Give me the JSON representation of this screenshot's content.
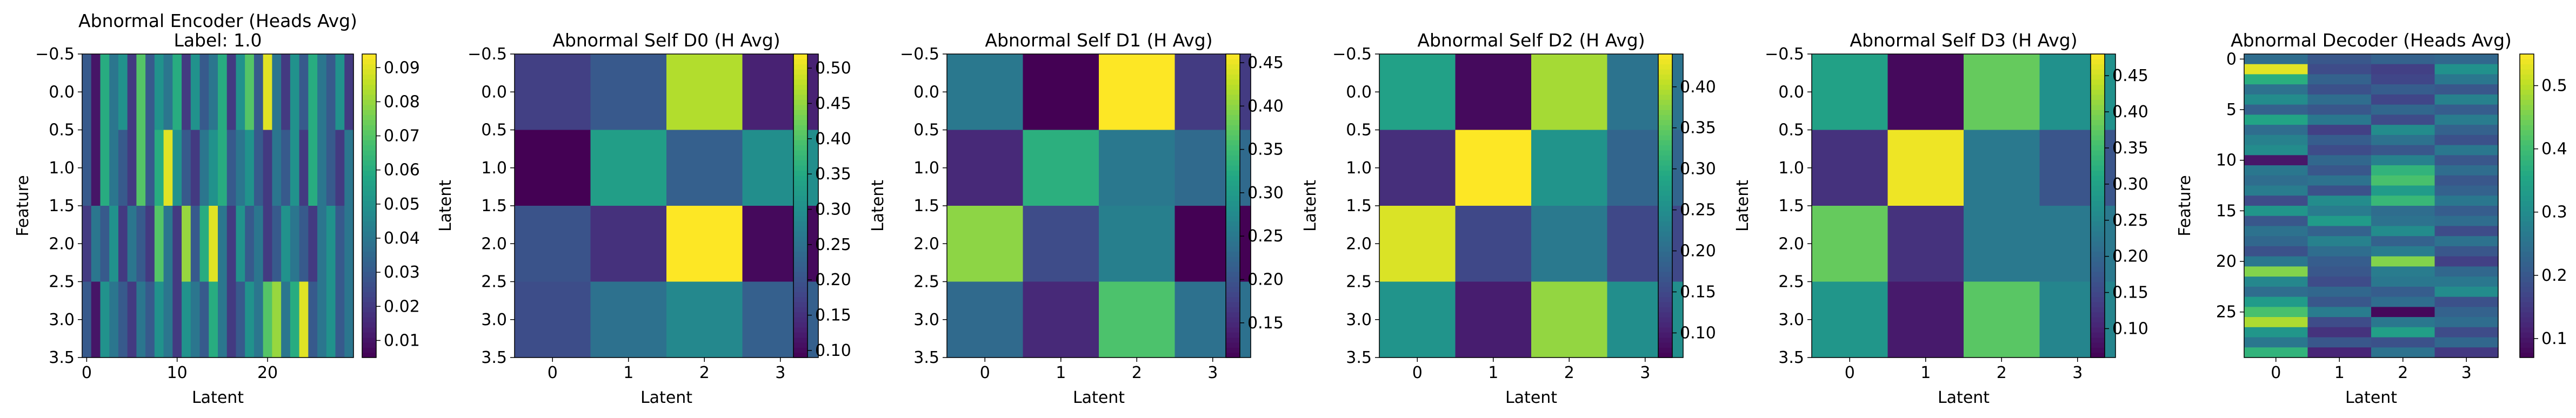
{
  "chart_data": [
    {
      "type": "heatmap",
      "title": "Abnormal Encoder (Heads Avg)",
      "subtitle": "Label: 1.0",
      "xlabel": "Latent",
      "ylabel": "Feature",
      "x_ticks": [
        "0",
        "10",
        "20"
      ],
      "y_ticks": [
        "−0.5",
        "0.0",
        "0.5",
        "1.0",
        "1.5",
        "2.0",
        "2.5",
        "3.0",
        "3.5"
      ],
      "colorbar_ticks": [
        "0.01",
        "0.02",
        "0.03",
        "0.04",
        "0.05",
        "0.06",
        "0.07",
        "0.08",
        "0.09"
      ],
      "colorbar_range": [
        0.005,
        0.094
      ],
      "rows": 4,
      "cols": 30,
      "values": [
        [
          0.03,
          0.01,
          0.06,
          0.04,
          0.05,
          0.02,
          0.07,
          0.03,
          0.05,
          0.04,
          0.06,
          0.02,
          0.05,
          0.03,
          0.04,
          0.06,
          0.02,
          0.05,
          0.07,
          0.03,
          0.09,
          0.04,
          0.02,
          0.05,
          0.03,
          0.06,
          0.04,
          0.03,
          0.05,
          0.02
        ],
        [
          0.03,
          0.01,
          0.06,
          0.04,
          0.03,
          0.02,
          0.07,
          0.03,
          0.06,
          0.09,
          0.05,
          0.03,
          0.02,
          0.04,
          0.05,
          0.06,
          0.03,
          0.04,
          0.05,
          0.03,
          0.02,
          0.04,
          0.03,
          0.05,
          0.02,
          0.06,
          0.04,
          0.03,
          0.02,
          0.04
        ],
        [
          0.02,
          0.04,
          0.03,
          0.05,
          0.02,
          0.04,
          0.03,
          0.02,
          0.07,
          0.04,
          0.02,
          0.08,
          0.03,
          0.06,
          0.09,
          0.04,
          0.02,
          0.05,
          0.03,
          0.04,
          0.02,
          0.03,
          0.05,
          0.04,
          0.03,
          0.02,
          0.04,
          0.05,
          0.03,
          0.04
        ],
        [
          0.03,
          0.01,
          0.05,
          0.04,
          0.03,
          0.02,
          0.04,
          0.03,
          0.05,
          0.04,
          0.02,
          0.05,
          0.04,
          0.03,
          0.06,
          0.04,
          0.02,
          0.03,
          0.05,
          0.04,
          0.07,
          0.08,
          0.04,
          0.06,
          0.09,
          0.03,
          0.04,
          0.05,
          0.03,
          0.04
        ]
      ]
    },
    {
      "type": "heatmap",
      "title": "Abnormal Self D0 (H Avg)",
      "xlabel": "Latent",
      "ylabel": "Latent",
      "x_ticks": [
        "0",
        "1",
        "2",
        "3"
      ],
      "y_ticks": [
        "−0.5",
        "0.0",
        "0.5",
        "1.0",
        "1.5",
        "2.0",
        "2.5",
        "3.0",
        "3.5"
      ],
      "colorbar_ticks": [
        "0.10",
        "0.15",
        "0.20",
        "0.25",
        "0.30",
        "0.35",
        "0.40",
        "0.45",
        "0.50"
      ],
      "colorbar_range": [
        0.09,
        0.52
      ],
      "rows": 4,
      "cols": 4,
      "values": [
        [
          0.17,
          0.21,
          0.47,
          0.13
        ],
        [
          0.09,
          0.33,
          0.22,
          0.3
        ],
        [
          0.2,
          0.15,
          0.52,
          0.1
        ],
        [
          0.19,
          0.25,
          0.29,
          0.22
        ]
      ]
    },
    {
      "type": "heatmap",
      "title": "Abnormal Self D1 (H Avg)",
      "xlabel": "Latent",
      "ylabel": "Latent",
      "x_ticks": [
        "0",
        "1",
        "2",
        "3"
      ],
      "y_ticks": [
        "−0.5",
        "0.0",
        "0.5",
        "1.0",
        "1.5",
        "2.0",
        "2.5",
        "3.0",
        "3.5"
      ],
      "colorbar_ticks": [
        "0.15",
        "0.20",
        "0.25",
        "0.30",
        "0.35",
        "0.40",
        "0.45"
      ],
      "colorbar_range": [
        0.11,
        0.46
      ],
      "rows": 4,
      "cols": 4,
      "values": [
        [
          0.25,
          0.11,
          0.46,
          0.17
        ],
        [
          0.15,
          0.33,
          0.25,
          0.23
        ],
        [
          0.4,
          0.19,
          0.26,
          0.11
        ],
        [
          0.23,
          0.15,
          0.36,
          0.24
        ]
      ]
    },
    {
      "type": "heatmap",
      "title": "Abnormal Self D2 (H Avg)",
      "xlabel": "Latent",
      "ylabel": "Latent",
      "x_ticks": [
        "0",
        "1",
        "2",
        "3"
      ],
      "y_ticks": [
        "−0.5",
        "0.0",
        "0.5",
        "1.0",
        "1.5",
        "2.0",
        "2.5",
        "3.0",
        "3.5"
      ],
      "colorbar_ticks": [
        "0.10",
        "0.15",
        "0.20",
        "0.25",
        "0.30",
        "0.35",
        "0.40"
      ],
      "colorbar_range": [
        0.07,
        0.44
      ],
      "rows": 4,
      "cols": 4,
      "values": [
        [
          0.28,
          0.08,
          0.39,
          0.21
        ],
        [
          0.12,
          0.44,
          0.26,
          0.19
        ],
        [
          0.42,
          0.15,
          0.22,
          0.15
        ],
        [
          0.26,
          0.1,
          0.38,
          0.25
        ]
      ]
    },
    {
      "type": "heatmap",
      "title": "Abnormal Self D3 (H Avg)",
      "xlabel": "Latent",
      "ylabel": "Latent",
      "x_ticks": [
        "0",
        "1",
        "2",
        "3"
      ],
      "y_ticks": [
        "−0.5",
        "0.0",
        "0.5",
        "1.0",
        "1.5",
        "2.0",
        "2.5",
        "3.0",
        "3.5"
      ],
      "colorbar_ticks": [
        "0.10",
        "0.15",
        "0.20",
        "0.25",
        "0.30",
        "0.35",
        "0.40",
        "0.45"
      ],
      "colorbar_range": [
        0.06,
        0.48
      ],
      "rows": 4,
      "cols": 4,
      "values": [
        [
          0.3,
          0.07,
          0.38,
          0.27
        ],
        [
          0.12,
          0.47,
          0.23,
          0.17
        ],
        [
          0.38,
          0.12,
          0.23,
          0.23
        ],
        [
          0.28,
          0.09,
          0.37,
          0.25
        ]
      ]
    },
    {
      "type": "heatmap",
      "title": "Abnormal Decoder (Heads Avg)",
      "xlabel": "Latent",
      "ylabel": "Feature",
      "x_ticks": [
        "0",
        "1",
        "2",
        "3"
      ],
      "y_ticks": [
        "0",
        "5",
        "10",
        "15",
        "20",
        "25"
      ],
      "colorbar_ticks": [
        "0.1",
        "0.2",
        "0.3",
        "0.4",
        "0.5"
      ],
      "colorbar_range": [
        0.07,
        0.55
      ],
      "rows": 30,
      "cols": 4,
      "values": [
        [
          0.24,
          0.2,
          0.22,
          0.23
        ],
        [
          0.53,
          0.18,
          0.16,
          0.31
        ],
        [
          0.37,
          0.22,
          0.17,
          0.26
        ],
        [
          0.25,
          0.19,
          0.21,
          0.2
        ],
        [
          0.3,
          0.24,
          0.17,
          0.28
        ],
        [
          0.22,
          0.2,
          0.23,
          0.21
        ],
        [
          0.35,
          0.26,
          0.18,
          0.27
        ],
        [
          0.24,
          0.16,
          0.3,
          0.22
        ],
        [
          0.28,
          0.21,
          0.25,
          0.19
        ],
        [
          0.3,
          0.18,
          0.2,
          0.26
        ],
        [
          0.1,
          0.23,
          0.28,
          0.2
        ],
        [
          0.26,
          0.2,
          0.38,
          0.24
        ],
        [
          0.24,
          0.25,
          0.41,
          0.2
        ],
        [
          0.27,
          0.19,
          0.33,
          0.22
        ],
        [
          0.18,
          0.3,
          0.39,
          0.26
        ],
        [
          0.32,
          0.27,
          0.24,
          0.21
        ],
        [
          0.2,
          0.33,
          0.25,
          0.24
        ],
        [
          0.25,
          0.22,
          0.3,
          0.18
        ],
        [
          0.23,
          0.28,
          0.22,
          0.25
        ],
        [
          0.19,
          0.24,
          0.27,
          0.2
        ],
        [
          0.26,
          0.21,
          0.46,
          0.16
        ],
        [
          0.46,
          0.2,
          0.27,
          0.23
        ],
        [
          0.29,
          0.18,
          0.26,
          0.26
        ],
        [
          0.24,
          0.23,
          0.21,
          0.3
        ],
        [
          0.33,
          0.2,
          0.24,
          0.19
        ],
        [
          0.41,
          0.27,
          0.08,
          0.22
        ],
        [
          0.49,
          0.18,
          0.26,
          0.24
        ],
        [
          0.32,
          0.14,
          0.34,
          0.18
        ],
        [
          0.26,
          0.2,
          0.19,
          0.23
        ],
        [
          0.38,
          0.12,
          0.25,
          0.15
        ]
      ]
    }
  ]
}
